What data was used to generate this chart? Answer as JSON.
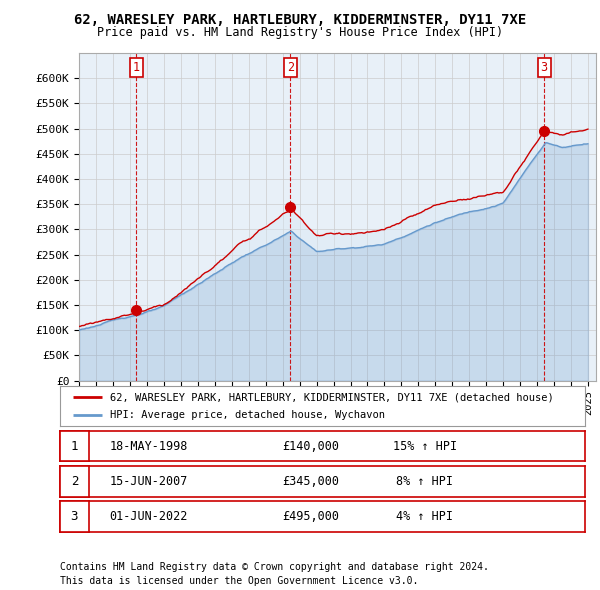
{
  "title": "62, WARESLEY PARK, HARTLEBURY, KIDDERMINSTER, DY11 7XE",
  "subtitle": "Price paid vs. HM Land Registry's House Price Index (HPI)",
  "ylim": [
    0,
    650000
  ],
  "yticks": [
    0,
    50000,
    100000,
    150000,
    200000,
    250000,
    300000,
    350000,
    400000,
    450000,
    500000,
    550000,
    600000
  ],
  "ytick_labels": [
    "£0",
    "£50K",
    "£100K",
    "£150K",
    "£200K",
    "£250K",
    "£300K",
    "£350K",
    "£400K",
    "£450K",
    "£500K",
    "£550K",
    "£600K"
  ],
  "sale_dates": [
    1998.37,
    2007.46,
    2022.42
  ],
  "sale_prices": [
    140000,
    345000,
    495000
  ],
  "sale_labels": [
    "1",
    "2",
    "3"
  ],
  "line_color_price": "#cc0000",
  "line_color_hpi": "#6699cc",
  "fill_color": "#d8e8f5",
  "chart_bg": "#e8f0f8",
  "vline_color": "#cc0000",
  "grid_color": "#cccccc",
  "background_color": "#ffffff",
  "legend1": "62, WARESLEY PARK, HARTLEBURY, KIDDERMINSTER, DY11 7XE (detached house)",
  "legend2": "HPI: Average price, detached house, Wychavon",
  "footer1": "Contains HM Land Registry data © Crown copyright and database right 2024.",
  "footer2": "This data is licensed under the Open Government Licence v3.0.",
  "table_rows": [
    [
      "1",
      "18-MAY-1998",
      "£140,000",
      "15% ↑ HPI"
    ],
    [
      "2",
      "15-JUN-2007",
      "£345,000",
      "8% ↑ HPI"
    ],
    [
      "3",
      "01-JUN-2022",
      "£495,000",
      "4% ↑ HPI"
    ]
  ]
}
